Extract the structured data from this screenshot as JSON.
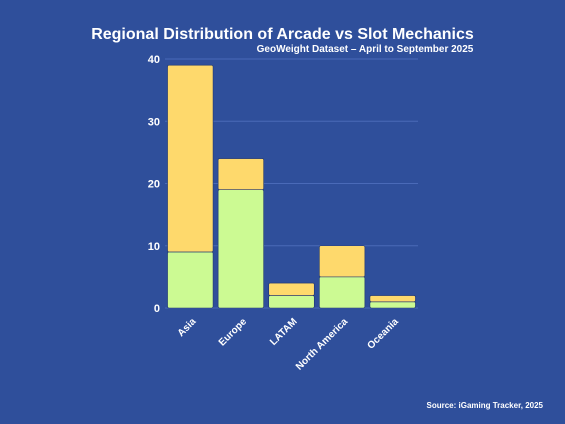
{
  "colors": {
    "background": "#2f4f9b",
    "gridline": "#4a6ab8",
    "series_green": "#ccfa93",
    "series_yellow": "#fed96c",
    "text": "#ffffff"
  },
  "chart_data": {
    "type": "bar",
    "stacked": true,
    "title": "Regional Distribution of Arcade vs Slot Mechanics",
    "subtitle": "GeoWeight Dataset – April to September 2025",
    "source": "Source: iGaming Tracker, 2025",
    "xlabel": "",
    "ylabel": "",
    "categories": [
      "Asia",
      "Europe",
      "LATAM",
      "North America",
      "Oceania"
    ],
    "series": [
      {
        "values": [
          9,
          19,
          2,
          5,
          1
        ],
        "color": "#ccfa93"
      },
      {
        "values": [
          30,
          5,
          2,
          5,
          1
        ],
        "color": "#fed96c"
      }
    ],
    "ylim": [
      0,
      40
    ],
    "yticks": [
      0,
      10,
      20,
      30,
      40
    ],
    "grid": true,
    "legend": "none"
  }
}
